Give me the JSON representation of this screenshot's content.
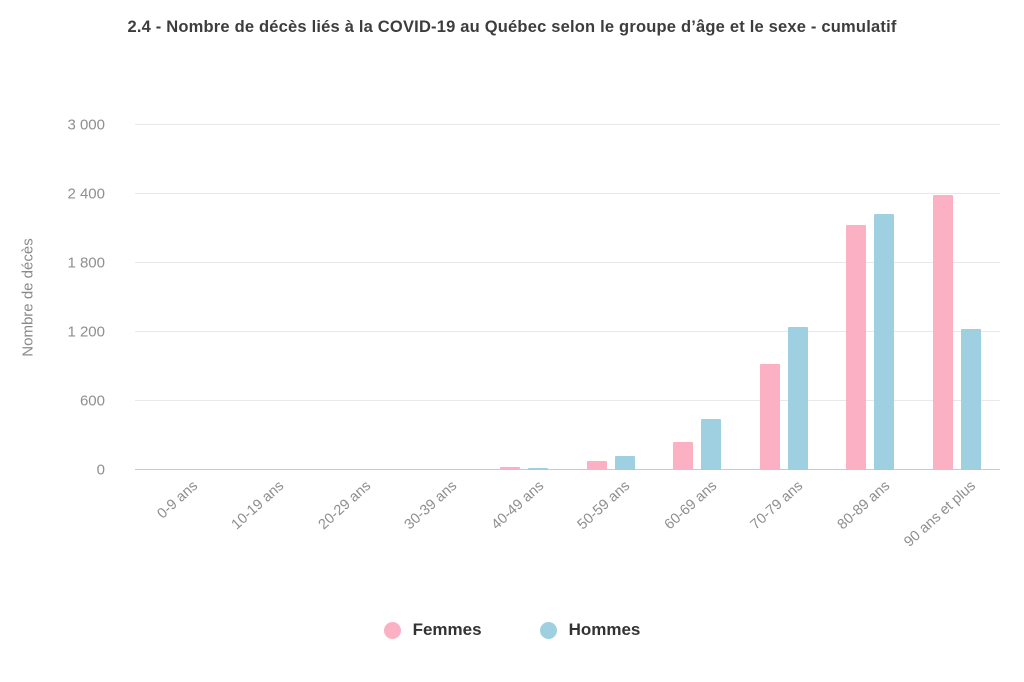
{
  "title": "2.4 - Nombre de décès liés à la COVID-19 au Québec selon le groupe d’âge et le sexe - cumulatif",
  "chart_data": {
    "type": "bar",
    "title": "2.4 - Nombre de décès liés à la COVID-19 au Québec selon le groupe d’âge et le sexe - cumulatif",
    "xlabel": "",
    "ylabel": "Nombre de décès",
    "categories": [
      "0-9 ans",
      "10-19 ans",
      "20-29 ans",
      "30-39 ans",
      "40-49 ans",
      "50-59 ans",
      "60-69 ans",
      "70-79 ans",
      "80-89 ans",
      "90 ans et plus"
    ],
    "series": [
      {
        "name": "Femmes",
        "color": "#fbb1c3",
        "values": [
          0,
          0,
          0,
          0,
          25,
          75,
          240,
          920,
          2130,
          2390
        ]
      },
      {
        "name": "Hommes",
        "color": "#9ed0e2",
        "values": [
          0,
          0,
          0,
          0,
          20,
          120,
          440,
          1240,
          2230,
          1230
        ]
      }
    ],
    "ylim": [
      0,
      3000
    ],
    "yticks": [
      0,
      600,
      1200,
      1800,
      2400,
      3000
    ],
    "ytick_labels": [
      "0",
      "600",
      "1 200",
      "1 800",
      "2 400",
      "3 000"
    ],
    "grid": true,
    "legend_position": "bottom"
  },
  "colors": {
    "background": "#ffffff",
    "title_text": "#3d3d3d",
    "axis_text": "#8e8e8e",
    "gridline": "#e8e8e8",
    "baseline": "#c9c9c9",
    "legend_text": "#333333",
    "femmes": "#fbb1c3",
    "hommes": "#9ed0e2"
  }
}
